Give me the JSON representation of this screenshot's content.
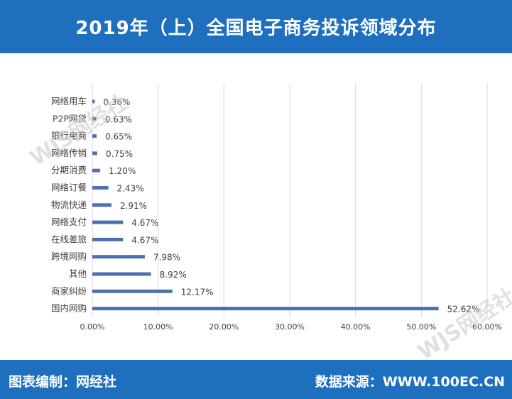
{
  "header": {
    "title": "2019年（上）全国电子商务投诉领域分布"
  },
  "footer": {
    "left": "图表编制：网经社",
    "right": "数据来源：WWW.100EC.CN"
  },
  "watermark": {
    "text": "WJS网经社"
  },
  "colors": {
    "header_bg": "#1f6fbf",
    "bar": "#4a72b0",
    "grid": "#d9d9d9",
    "text": "#404040"
  },
  "chart_data": {
    "type": "bar",
    "orientation": "horizontal",
    "title": "",
    "xlabel": "",
    "ylabel": "",
    "categories": [
      "网络用车",
      "P2P网贷",
      "银行电商",
      "网络传销",
      "分期消费",
      "网络订餐",
      "物流快递",
      "网络支付",
      "在线差旅",
      "跨境网购",
      "其他",
      "商家纠纷",
      "国内网购"
    ],
    "values": [
      0.36,
      0.63,
      0.65,
      0.75,
      1.2,
      2.43,
      2.91,
      4.67,
      4.67,
      7.98,
      8.92,
      12.17,
      52.62
    ],
    "value_labels": [
      "0.36%",
      "0.63%",
      "0.65%",
      "0.75%",
      "1.20%",
      "2.43%",
      "2.91%",
      "4.67%",
      "4.67%",
      "7.98%",
      "8.92%",
      "12.17%",
      "52.62%"
    ],
    "xlim": [
      0,
      60
    ],
    "xticks": [
      0,
      10,
      20,
      30,
      40,
      50,
      60
    ],
    "xtick_labels": [
      "0.00%",
      "10.00%",
      "20.00%",
      "30.00%",
      "40.00%",
      "50.00%",
      "60.00%"
    ],
    "grid": true,
    "legend": "none"
  }
}
